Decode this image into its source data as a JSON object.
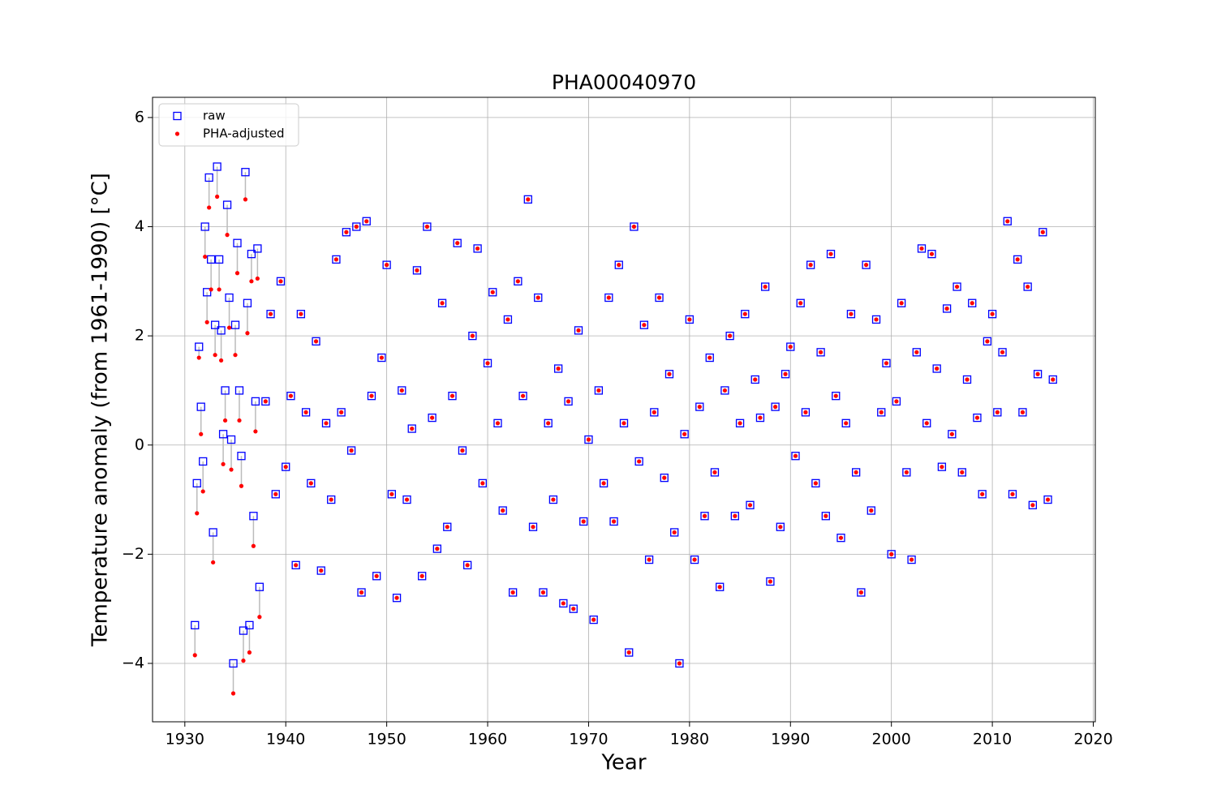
{
  "chart_data": {
    "type": "scatter",
    "title": "PHA00040970",
    "x_label": "Year",
    "y_label": "Temperature anomaly (from 1961-1990) [°C]",
    "xlim": [
      1926.8,
      2020.2
    ],
    "ylim": [
      -5.07,
      6.37
    ],
    "xticks": [
      1930,
      1940,
      1950,
      1960,
      1970,
      1980,
      1990,
      2000,
      2010,
      2020
    ],
    "yticks": [
      {
        "value": -4,
        "label": "−4"
      },
      {
        "value": -2,
        "label": "−2"
      },
      0,
      2,
      4,
      6
    ],
    "grid": true,
    "legend": "upper left",
    "x": [
      1931.0,
      1931.2,
      1931.4,
      1931.6,
      1931.8,
      1932.0,
      1932.2,
      1932.4,
      1932.6,
      1932.8,
      1933.0,
      1933.2,
      1933.4,
      1933.6,
      1933.8,
      1934.0,
      1934.2,
      1934.4,
      1934.6,
      1934.8,
      1935.0,
      1935.2,
      1935.4,
      1935.6,
      1935.8,
      1936.0,
      1936.2,
      1936.4,
      1936.6,
      1936.8,
      1937.0,
      1937.2,
      1937.4,
      1938.0,
      1938.5,
      1939.0,
      1939.5,
      1940.0,
      1940.5,
      1941.0,
      1941.5,
      1942.0,
      1942.5,
      1943.0,
      1943.5,
      1944.0,
      1944.5,
      1945.0,
      1945.5,
      1946.0,
      1946.5,
      1947.0,
      1947.5,
      1948.0,
      1948.5,
      1949.0,
      1949.5,
      1950.0,
      1950.5,
      1951.0,
      1951.5,
      1952.0,
      1952.5,
      1953.0,
      1953.5,
      1954.0,
      1954.5,
      1955.0,
      1955.5,
      1956.0,
      1956.5,
      1957.0,
      1957.5,
      1958.0,
      1958.5,
      1959.0,
      1959.5,
      1960.0,
      1960.5,
      1961.0,
      1961.5,
      1962.0,
      1962.5,
      1963.0,
      1963.5,
      1964.0,
      1964.5,
      1965.0,
      1965.5,
      1966.0,
      1966.5,
      1967.0,
      1967.5,
      1968.0,
      1968.5,
      1969.0,
      1969.5,
      1970.0,
      1970.5,
      1971.0,
      1971.5,
      1972.0,
      1972.5,
      1973.0,
      1973.5,
      1974.0,
      1974.5,
      1975.0,
      1975.5,
      1976.0,
      1976.5,
      1977.0,
      1977.5,
      1978.0,
      1978.5,
      1979.0,
      1979.5,
      1980.0,
      1980.5,
      1981.0,
      1981.5,
      1982.0,
      1982.5,
      1983.0,
      1983.5,
      1984.0,
      1984.5,
      1985.0,
      1985.5,
      1986.0,
      1986.5,
      1987.0,
      1987.5,
      1988.0,
      1988.5,
      1989.0,
      1989.5,
      1990.0,
      1990.5,
      1991.0,
      1991.5,
      1992.0,
      1992.5,
      1993.0,
      1993.5,
      1994.0,
      1994.5,
      1995.0,
      1995.5,
      1996.0,
      1996.5,
      1997.0,
      1997.5,
      1998.0,
      1998.5,
      1999.0,
      1999.5,
      2000.0,
      2000.5,
      2001.0,
      2001.5,
      2002.0,
      2002.5,
      2003.0,
      2003.5,
      2004.0,
      2004.5,
      2005.0,
      2005.5,
      2006.0,
      2006.5,
      2007.0,
      2007.5,
      2008.0,
      2008.5,
      2009.0,
      2009.5,
      2010.0,
      2010.5,
      2011.0,
      2011.5,
      2012.0,
      2012.5,
      2013.0,
      2013.5,
      2014.0,
      2014.5,
      2015.0,
      2015.5,
      2016.0
    ],
    "series": [
      {
        "name": "raw",
        "color": "#0000ff",
        "values": [
          -3.3,
          -0.7,
          1.8,
          0.7,
          -0.3,
          4.0,
          2.8,
          4.9,
          3.4,
          -1.6,
          2.2,
          5.1,
          3.4,
          2.1,
          0.2,
          1.0,
          4.4,
          2.7,
          0.1,
          -4.0,
          2.2,
          3.7,
          1.0,
          -0.2,
          -3.4,
          5.0,
          2.6,
          -3.3,
          3.5,
          -1.3,
          0.8,
          3.6,
          -2.6,
          0.8,
          2.4,
          -0.9,
          3.0,
          -0.4,
          0.9,
          -2.2,
          2.4,
          0.6,
          -0.7,
          1.9,
          -2.3,
          0.4,
          -1.0,
          3.4,
          0.6,
          3.9,
          -0.1,
          4.0,
          -2.7,
          4.1,
          0.9,
          -2.4,
          1.6,
          3.3,
          -0.9,
          -2.8,
          1.0,
          -1.0,
          0.3,
          3.2,
          -2.4,
          4.0,
          0.5,
          -1.9,
          2.6,
          -1.5,
          0.9,
          3.7,
          -0.1,
          -2.2,
          2.0,
          3.6,
          -0.7,
          1.5,
          2.8,
          0.4,
          -1.2,
          2.3,
          -2.7,
          3.0,
          0.9,
          4.5,
          -1.5,
          2.7,
          -2.7,
          0.4,
          -1.0,
          1.4,
          -2.9,
          0.8,
          -3.0,
          2.1,
          -1.4,
          0.1,
          -3.2,
          1.0,
          -0.7,
          2.7,
          -1.4,
          3.3,
          0.4,
          -3.8,
          4.0,
          -0.3,
          2.2,
          -2.1,
          0.6,
          2.7,
          -0.6,
          1.3,
          -1.6,
          -4.0,
          0.2,
          2.3,
          -2.1,
          0.7,
          -1.3,
          1.6,
          -0.5,
          -2.6,
          1.0,
          2.0,
          -1.3,
          0.4,
          2.4,
          -1.1,
          1.2,
          0.5,
          2.9,
          -2.5,
          0.7,
          -1.5,
          1.3,
          1.8,
          -0.2,
          2.6,
          0.6,
          3.3,
          -0.7,
          1.7,
          -1.3,
          3.5,
          0.9,
          -1.7,
          0.4,
          2.4,
          -0.5,
          -2.7,
          3.3,
          -1.2,
          2.3,
          0.6,
          1.5,
          -2.0,
          0.8,
          2.6,
          -0.5,
          -2.1,
          1.7,
          3.6,
          0.4,
          3.5,
          1.4,
          -0.4,
          2.5,
          0.2,
          2.9,
          -0.5,
          1.2,
          2.6,
          0.5,
          -0.9,
          1.9,
          2.4,
          0.6,
          1.7,
          4.1,
          -0.9,
          3.4,
          0.6,
          2.9,
          -1.1,
          1.3,
          3.9,
          -1.0,
          1.2
        ]
      },
      {
        "name": "PHA-adjusted",
        "color": "#ff0000",
        "values": [
          -3.85,
          -1.25,
          1.6,
          0.2,
          -0.85,
          3.45,
          2.25,
          4.35,
          2.85,
          -2.15,
          1.65,
          4.55,
          2.85,
          1.55,
          -0.35,
          0.45,
          3.85,
          2.15,
          -0.45,
          -4.55,
          1.65,
          3.15,
          0.45,
          -0.75,
          -3.95,
          4.5,
          2.05,
          -3.8,
          3.0,
          -1.85,
          0.25,
          3.05,
          -3.15,
          0.8,
          2.4,
          -0.9,
          3.0,
          -0.4,
          0.9,
          -2.2,
          2.4,
          0.6,
          -0.7,
          1.9,
          -2.3,
          0.4,
          -1.0,
          3.4,
          0.6,
          3.9,
          -0.1,
          4.0,
          -2.7,
          4.1,
          0.9,
          -2.4,
          1.6,
          3.3,
          -0.9,
          -2.8,
          1.0,
          -1.0,
          0.3,
          3.2,
          -2.4,
          4.0,
          0.5,
          -1.9,
          2.6,
          -1.5,
          0.9,
          3.7,
          -0.1,
          -2.2,
          2.0,
          3.6,
          -0.7,
          1.5,
          2.8,
          0.4,
          -1.2,
          2.3,
          -2.7,
          3.0,
          0.9,
          4.5,
          -1.5,
          2.7,
          -2.7,
          0.4,
          -1.0,
          1.4,
          -2.9,
          0.8,
          -3.0,
          2.1,
          -1.4,
          0.1,
          -3.2,
          1.0,
          -0.7,
          2.7,
          -1.4,
          3.3,
          0.4,
          -3.8,
          4.0,
          -0.3,
          2.2,
          -2.1,
          0.6,
          2.7,
          -0.6,
          1.3,
          -1.6,
          -4.0,
          0.2,
          2.3,
          -2.1,
          0.7,
          -1.3,
          1.6,
          -0.5,
          -2.6,
          1.0,
          2.0,
          -1.3,
          0.4,
          2.4,
          -1.1,
          1.2,
          0.5,
          2.9,
          -2.5,
          0.7,
          -1.5,
          1.3,
          1.8,
          -0.2,
          2.6,
          0.6,
          3.3,
          -0.7,
          1.7,
          -1.3,
          3.5,
          0.9,
          -1.7,
          0.4,
          2.4,
          -0.5,
          -2.7,
          3.3,
          -1.2,
          2.3,
          0.6,
          1.5,
          -2.0,
          0.8,
          2.6,
          -0.5,
          -2.1,
          1.7,
          3.6,
          0.4,
          3.5,
          1.4,
          -0.4,
          2.5,
          0.2,
          2.9,
          -0.5,
          1.2,
          2.6,
          0.5,
          -0.9,
          1.9,
          2.4,
          0.6,
          1.7,
          4.1,
          -0.9,
          3.4,
          0.6,
          2.9,
          -1.1,
          1.3,
          3.9,
          -1.0,
          1.2
        ]
      }
    ]
  }
}
